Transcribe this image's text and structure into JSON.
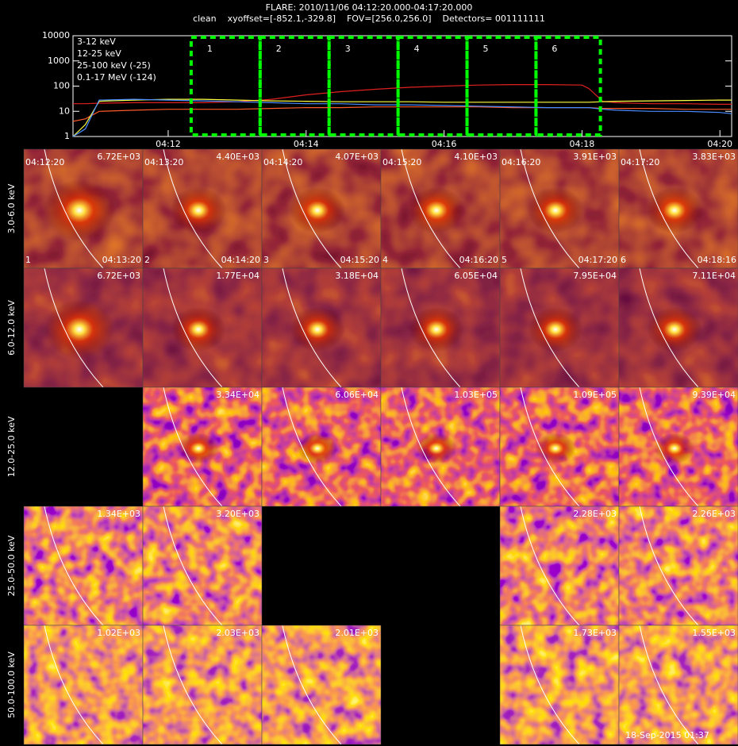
{
  "header": {
    "title": "FLARE: 2010/11/06 04:12:20.000-04:17:20.000",
    "subtitle": "clean    xyoffset=[-852.1,-329.8]    FOV=[256.0,256.0]    Detectors= 001111111"
  },
  "chart_data": {
    "type": "line",
    "log_y": true,
    "x": [
      10.62,
      10.8,
      11.0,
      11.5,
      12,
      12.5,
      13,
      13.5,
      14,
      14.5,
      15,
      15.5,
      16,
      16.5,
      17,
      17.5,
      18,
      18.1,
      18.3,
      18.5,
      19,
      19.5,
      20,
      20.17
    ],
    "xlim": [
      10.62,
      20.17
    ],
    "xticks": [
      {
        "value": 12,
        "label": "04:12"
      },
      {
        "value": 14,
        "label": "04:14"
      },
      {
        "value": 16,
        "label": "04:16"
      },
      {
        "value": 18,
        "label": "04:18"
      },
      {
        "value": 20,
        "label": "04:20"
      }
    ],
    "ylim": [
      1,
      10000
    ],
    "yticks": [
      1,
      10,
      100,
      1000,
      10000
    ],
    "series": [
      {
        "name": "3-12 keV",
        "color": "#e02020",
        "values": [
          20,
          20,
          21,
          22,
          22,
          22,
          24,
          30,
          45,
          60,
          75,
          90,
          100,
          110,
          115,
          115,
          110,
          80,
          25,
          22,
          20,
          20,
          19,
          19
        ]
      },
      {
        "name": "12-25 keV",
        "color": "#ff5a2a",
        "values": [
          4,
          5,
          10,
          11,
          12,
          12,
          12,
          13,
          14,
          14,
          15,
          15,
          15,
          15,
          14,
          14,
          14,
          14,
          13,
          13,
          13,
          12,
          12,
          12
        ]
      },
      {
        "name": "25-100 keV (-25)",
        "color": "#ffff40",
        "values": [
          1,
          3,
          25,
          28,
          30,
          30,
          28,
          26,
          25,
          24,
          24,
          24,
          23,
          23,
          23,
          23,
          23,
          23,
          24,
          25,
          26,
          27,
          28,
          28
        ]
      },
      {
        "name": "0.1-17 MeV (-124)",
        "color": "#4a8cff",
        "values": [
          1,
          2,
          28,
          30,
          28,
          26,
          24,
          22,
          20,
          20,
          18,
          18,
          17,
          16,
          15,
          14,
          14,
          14,
          12,
          11,
          10,
          10,
          9,
          8
        ]
      }
    ],
    "intervals": {
      "bounds": [
        12.333,
        13.333,
        14.333,
        15.333,
        16.333,
        17.333,
        18.267
      ],
      "color": "#00ff00"
    }
  },
  "image_grid": {
    "energy_bands": [
      "3.0-6.0 keV",
      "6.0-12.0 keV",
      "12.0-25.0 keV",
      "25.0-50.0 keV",
      "50.0-100.0 keV"
    ],
    "intervals": [
      {
        "index": "1",
        "start": "04:12:20",
        "end": "04:13:20"
      },
      {
        "index": "2",
        "start": "04:13:20",
        "end": "04:14:20"
      },
      {
        "index": "3",
        "start": "04:14:20",
        "end": "04:15:20"
      },
      {
        "index": "4",
        "start": "04:15:20",
        "end": "04:16:20"
      },
      {
        "index": "5",
        "start": "04:16:20",
        "end": "04:17:20"
      },
      {
        "index": "6",
        "start": "04:17:20",
        "end": "04:18:16"
      }
    ],
    "rows": [
      [
        "6.72E+03",
        "4.40E+03",
        "4.07E+03",
        "4.10E+03",
        "3.91E+03",
        "3.83E+03"
      ],
      [
        "6.72E+03",
        "1.77E+04",
        "3.18E+04",
        "6.05E+04",
        "7.95E+04",
        "7.11E+04"
      ],
      [
        null,
        "3.34E+04",
        "6.06E+04",
        "1.03E+05",
        "1.09E+05",
        "9.39E+04"
      ],
      [
        "1.34E+03",
        "3.20E+03",
        null,
        null,
        "2.28E+03",
        "2.26E+03"
      ],
      [
        "1.02E+03",
        "2.03E+03",
        "2.01E+03",
        null,
        "1.73E+03",
        "1.55E+03"
      ]
    ]
  },
  "footer": "18-Sep-2015 01:37"
}
